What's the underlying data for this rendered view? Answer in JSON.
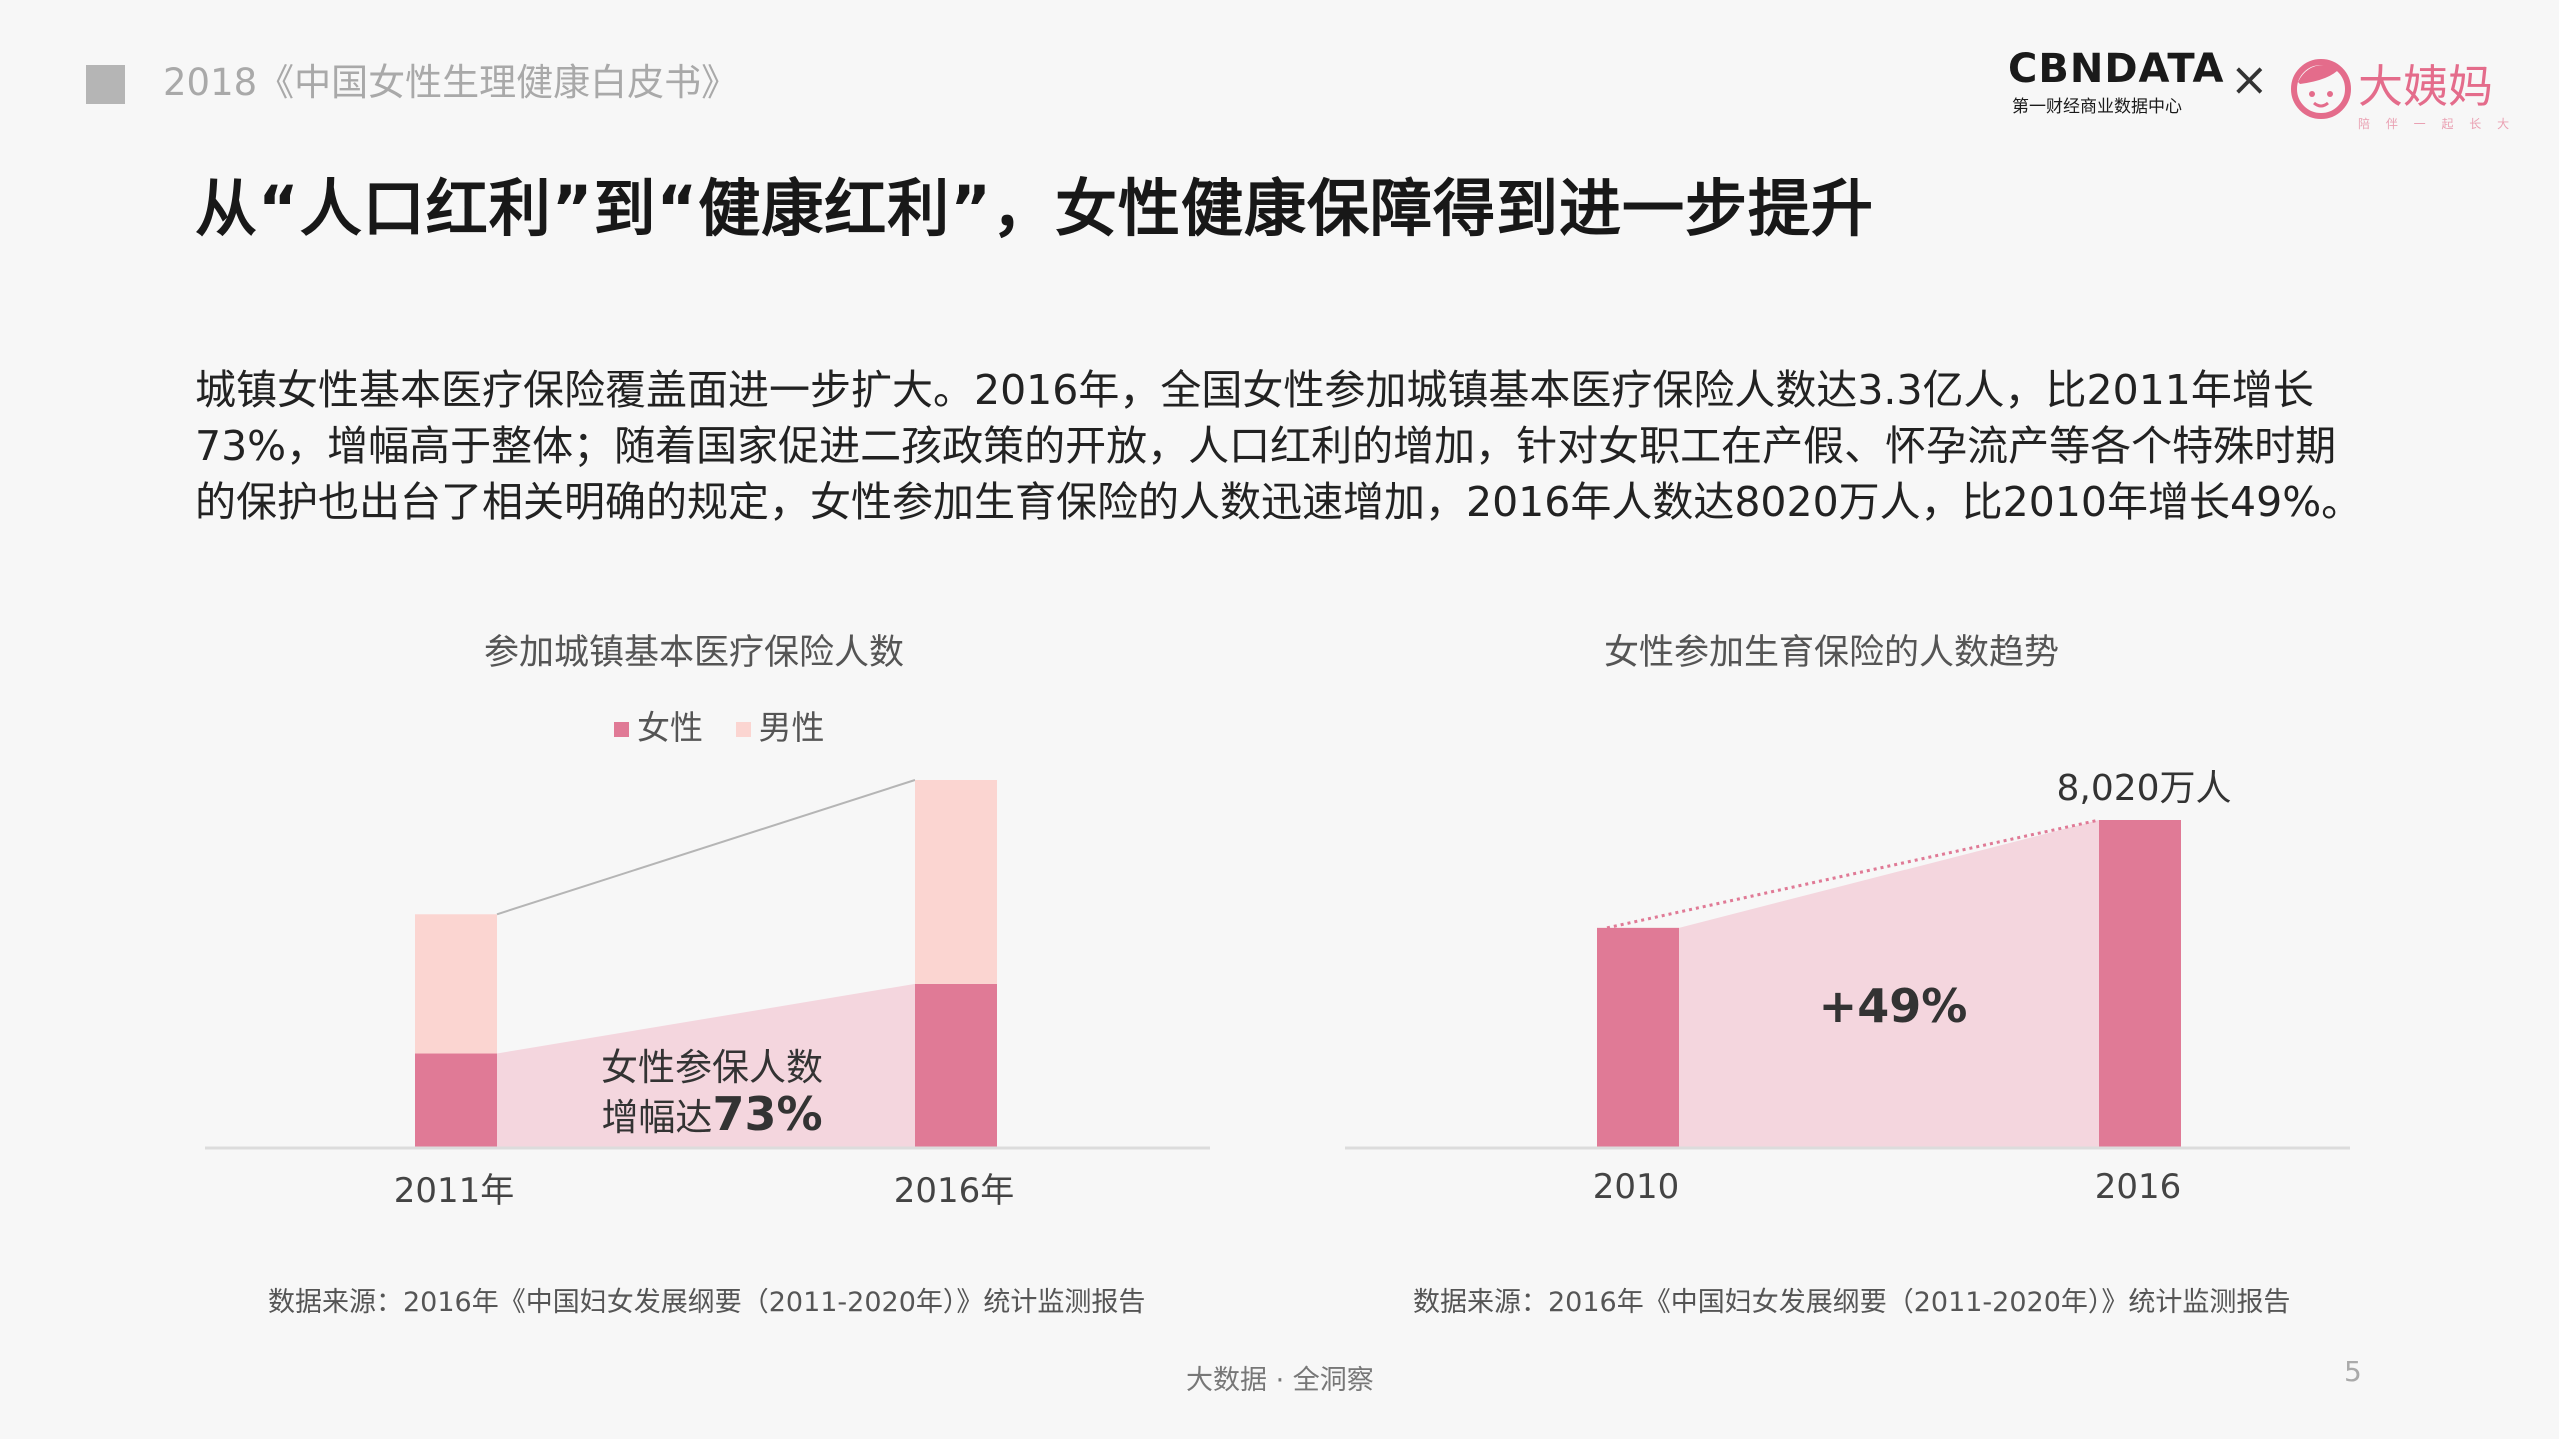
{
  "header": {
    "report_title": "2018《中国女性生理健康白皮书》",
    "logo_cbndata": "CBNDATA",
    "logo_cbndata_sub": "第一财经商业数据中心",
    "logo_times": "×",
    "logo_dayima": "大姨妈",
    "logo_dayima_sub": "陪 伴 一 起 长 大"
  },
  "headline": "从“人口红利”到“健康红利”，女性健康保障得到进一步提升",
  "body_text": "城镇女性基本医疗保险覆盖面进一步扩大。2016年，全国女性参加城镇基本医疗保险人数达3.3亿人，比2011年增长73%，增幅高于整体；随着国家促进二孩政策的开放，人口红利的增加，针对女职工在产假、怀孕流产等各个特殊时期的保护也出台了相关明确的规定，女性参加生育保险的人数迅速增加，2016年人数达8020万人，比2010年增长49%。",
  "chart_data": [
    {
      "type": "bar",
      "stacked": true,
      "title": "参加城镇基本医疗保险人数",
      "categories": [
        "2011年",
        "2016年"
      ],
      "series": [
        {
          "name": "女性",
          "color": "#e07a96",
          "values": [
            1.9,
            3.3
          ]
        },
        {
          "name": "男性",
          "color": "#fbd5d1",
          "values": [
            2.8,
            4.1
          ]
        }
      ],
      "ylim": [
        0,
        7.4
      ],
      "annotation_line1": "女性参保人数",
      "annotation_line2_prefix": "增幅达",
      "annotation_line2_value": "73%",
      "legend_position": "top-center",
      "source": "数据来源：2016年《中国妇女发展纲要（2011-2020年）》统计监测报告"
    },
    {
      "type": "bar",
      "title": "女性参加生育保险的人数趋势",
      "categories": [
        "2010",
        "2016"
      ],
      "series": [
        {
          "color": "#e07a96",
          "values": [
            5383,
            8020
          ]
        }
      ],
      "ylim": [
        0,
        8020
      ],
      "value_label_2016": "8,020万人",
      "growth_label": "+49%",
      "source": "数据来源：2016年《中国妇女发展纲要（2011-2020年）》统计监测报告"
    }
  ],
  "footer": {
    "tagline": "大数据 · 全洞察",
    "page_number": "5"
  },
  "colors": {
    "female": "#e07a96",
    "male": "#fbd5d1",
    "band": "#f4d6de",
    "brand_pink": "#e46c8b"
  }
}
